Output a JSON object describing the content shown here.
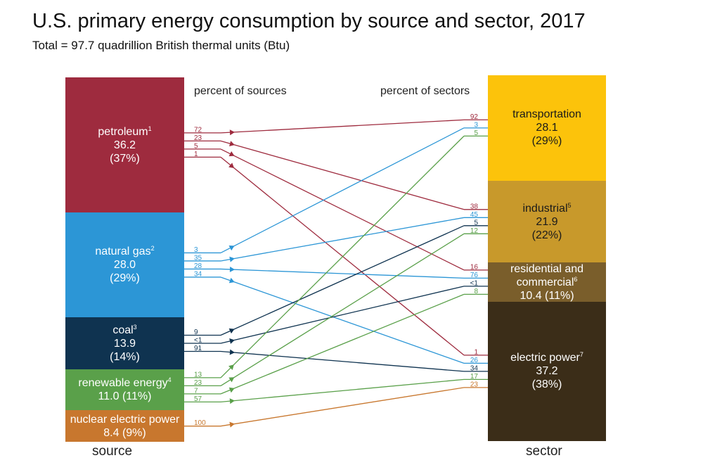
{
  "title": "U.S. primary energy consumption by source and sector, 2017",
  "subtitle": "Total = 97.7 quadrillion British thermal units (Btu)",
  "headers": {
    "sources": "percent of sources",
    "sectors": "percent of sectors"
  },
  "footers": {
    "source": "source",
    "sector": "sector"
  },
  "chart_data": {
    "type": "sankey",
    "unit": "quadrillion Btu",
    "total": 97.7,
    "sources": [
      {
        "id": "petroleum",
        "label": "petroleum",
        "note": "1",
        "value": 36.2,
        "value_text": "36.2",
        "pct_text": "(37%)",
        "color": "#9e2b3e",
        "text_color": "#ffffff"
      },
      {
        "id": "natural_gas",
        "label": "natural gas",
        "note": "2",
        "value": 28.0,
        "value_text": "28.0",
        "pct_text": "(29%)",
        "color": "#2c96d6",
        "text_color": "#ffffff"
      },
      {
        "id": "coal",
        "label": "coal",
        "note": "3",
        "value": 13.9,
        "value_text": "13.9",
        "pct_text": "(14%)",
        "color": "#0f3350",
        "text_color": "#ffffff"
      },
      {
        "id": "renewable",
        "label": "renewable energy",
        "note": "4",
        "value": 11.0,
        "value_text": "11.0 (11%)",
        "pct_text": "",
        "color": "#5aa04a",
        "text_color": "#ffffff"
      },
      {
        "id": "nuclear",
        "label": "nuclear electric power",
        "note": "",
        "value": 8.4,
        "value_text": "8.4 (9%)",
        "pct_text": "",
        "color": "#c8772e",
        "text_color": "#ffffff"
      }
    ],
    "sectors": [
      {
        "id": "transportation",
        "label": "transportation",
        "note": "",
        "value": 28.1,
        "value_text": "28.1",
        "pct_text": "(29%)",
        "color": "#fcc30b",
        "text_color": "#1a1a1a"
      },
      {
        "id": "industrial",
        "label": "industrial",
        "note": "5",
        "value": 21.9,
        "value_text": "21.9",
        "pct_text": "(22%)",
        "color": "#c8992b",
        "text_color": "#1a1a1a"
      },
      {
        "id": "residential",
        "label": "residential and commercial",
        "note": "6",
        "value": 10.4,
        "value_text": "10.4 (11%)",
        "pct_text": "",
        "color": "#7a5e2b",
        "text_color": "#ffffff"
      },
      {
        "id": "electric",
        "label": "electric power",
        "note": "7",
        "value": 37.2,
        "value_text": "37.2",
        "pct_text": "(38%)",
        "color": "#3b2d18",
        "text_color": "#ffffff"
      }
    ],
    "flows": [
      {
        "from": "petroleum",
        "to": "transportation",
        "source_pct": "72",
        "sector_pct": "92"
      },
      {
        "from": "petroleum",
        "to": "industrial",
        "source_pct": "23",
        "sector_pct": "38"
      },
      {
        "from": "petroleum",
        "to": "residential",
        "source_pct": "5",
        "sector_pct": "16"
      },
      {
        "from": "petroleum",
        "to": "electric",
        "source_pct": "1",
        "sector_pct": "1"
      },
      {
        "from": "natural_gas",
        "to": "transportation",
        "source_pct": "3",
        "sector_pct": "3"
      },
      {
        "from": "natural_gas",
        "to": "industrial",
        "source_pct": "35",
        "sector_pct": "45"
      },
      {
        "from": "natural_gas",
        "to": "residential",
        "source_pct": "28",
        "sector_pct": "76"
      },
      {
        "from": "natural_gas",
        "to": "electric",
        "source_pct": "34",
        "sector_pct": "26"
      },
      {
        "from": "coal",
        "to": "industrial",
        "source_pct": "9",
        "sector_pct": "5"
      },
      {
        "from": "coal",
        "to": "residential",
        "source_pct": "<1",
        "sector_pct": "<1"
      },
      {
        "from": "coal",
        "to": "electric",
        "source_pct": "91",
        "sector_pct": "34"
      },
      {
        "from": "renewable",
        "to": "transportation",
        "source_pct": "13",
        "sector_pct": "5"
      },
      {
        "from": "renewable",
        "to": "industrial",
        "source_pct": "23",
        "sector_pct": "12"
      },
      {
        "from": "renewable",
        "to": "residential",
        "source_pct": "7",
        "sector_pct": "8"
      },
      {
        "from": "renewable",
        "to": "electric",
        "source_pct": "57",
        "sector_pct": "17"
      },
      {
        "from": "nuclear",
        "to": "electric",
        "source_pct": "100",
        "sector_pct": "23"
      }
    ]
  }
}
